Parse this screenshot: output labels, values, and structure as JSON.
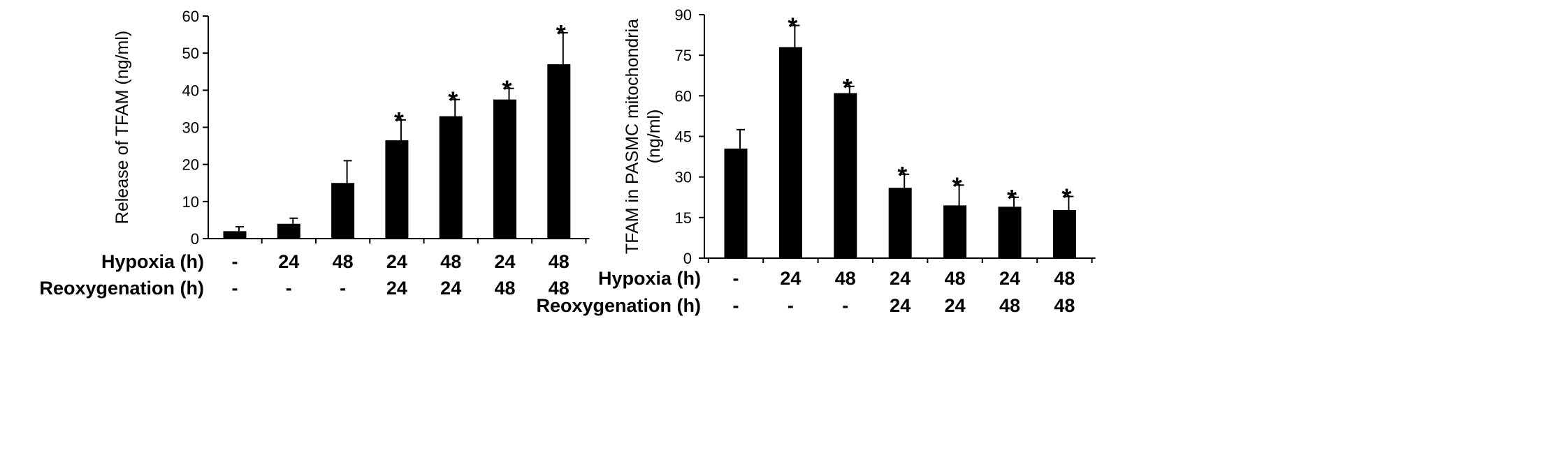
{
  "chart_data": [
    {
      "type": "bar",
      "title": "",
      "xlabel": "",
      "ylabel": "Release of TFAM (ng/ml)",
      "ylim": [
        0,
        60
      ],
      "yticks": [
        0,
        10,
        20,
        30,
        40,
        50,
        60
      ],
      "grid": false,
      "row_labels": [
        "Hypoxia (h)",
        "Reoxygenation (h)"
      ],
      "hypoxia": [
        "-",
        "24",
        "48",
        "24",
        "48",
        "24",
        "48"
      ],
      "reoxygenation": [
        "-",
        "-",
        "-",
        "24",
        "24",
        "48",
        "48"
      ],
      "values": [
        2,
        4,
        15,
        26.5,
        33,
        37.5,
        47
      ],
      "errors": [
        1.2,
        1.5,
        6,
        5.5,
        4.5,
        3,
        8.5
      ],
      "significant": [
        false,
        false,
        false,
        true,
        true,
        true,
        true
      ],
      "marker": "*",
      "bar_color": "#000000"
    },
    {
      "type": "bar",
      "title": "",
      "xlabel": "",
      "ylabel": "TFAM in PASMC mitochondria (ng/ml)",
      "ylabel_lines": [
        "TFAM in PASMC mitochondria",
        "(ng/ml)"
      ],
      "ylim": [
        0,
        90
      ],
      "yticks": [
        0,
        15,
        30,
        45,
        60,
        75,
        90
      ],
      "grid": false,
      "row_labels": [
        "Hypoxia (h)",
        "Reoxygenation (h)"
      ],
      "hypoxia": [
        "-",
        "24",
        "48",
        "24",
        "48",
        "24",
        "48"
      ],
      "reoxygenation": [
        "-",
        "-",
        "-",
        "24",
        "24",
        "48",
        "48"
      ],
      "values": [
        40.5,
        78,
        61,
        26,
        19.5,
        19,
        17.8
      ],
      "errors": [
        7,
        8,
        2.5,
        5,
        7.5,
        3.5,
        5
      ],
      "significant": [
        false,
        true,
        true,
        true,
        true,
        true,
        true
      ],
      "marker": "*",
      "bar_color": "#000000"
    }
  ]
}
